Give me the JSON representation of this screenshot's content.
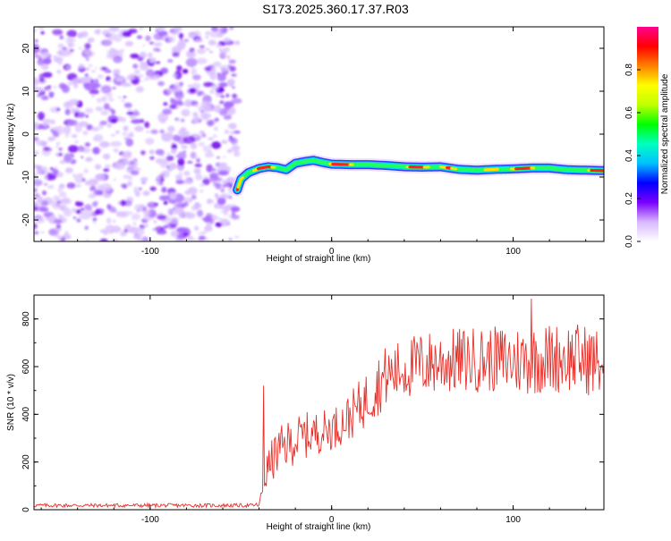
{
  "figure_title": "S173.2025.360.17.37.R03",
  "chart_data": [
    {
      "type": "heatmap",
      "panel": "spectrogram",
      "xlabel": "Height of straight line (km)",
      "ylabel": "Frequency (Hz)",
      "xlim": [
        -164,
        150
      ],
      "ylim": [
        -25,
        25
      ],
      "xticks": [
        -100,
        0,
        100
      ],
      "xtick_labels": [
        "-100",
        "0",
        "100"
      ],
      "yticks": [
        -20,
        -10,
        0,
        10,
        20
      ],
      "ytick_labels": [
        "-20",
        "-10",
        "0",
        "10",
        "20"
      ],
      "noise_region_x": [
        -164,
        -52
      ],
      "ridge": {
        "x": [
          -52,
          -50,
          -46,
          -40,
          -35,
          -30,
          -25,
          -20,
          -15,
          -10,
          -5,
          0,
          10,
          20,
          30,
          40,
          50,
          60,
          70,
          80,
          90,
          100,
          110,
          120,
          130,
          140,
          150
        ],
        "frequency": [
          -13,
          -10.5,
          -9,
          -8,
          -7.6,
          -7.8,
          -8.3,
          -6.8,
          -6.4,
          -6.1,
          -6.6,
          -7.0,
          -7.1,
          -7.1,
          -7.3,
          -7.6,
          -7.7,
          -7.6,
          -8.2,
          -8.4,
          -8.2,
          -8.1,
          -7.9,
          -7.9,
          -8.3,
          -8.4,
          -8.5
        ]
      },
      "colorbar": {
        "label": "Normalized spectral amplitude",
        "range": [
          0,
          1
        ],
        "ticks": [
          0.0,
          0.2,
          0.4,
          0.6,
          0.8
        ],
        "tick_labels": [
          "0.0",
          "0.2",
          "0.4",
          "0.6",
          "0.8"
        ],
        "colors": [
          "#ffffff",
          "#d8b8ff",
          "#7a00ff",
          "#0000ff",
          "#00c0ff",
          "#00ffc0",
          "#00ff00",
          "#c0ff00",
          "#ffff00",
          "#ff8000",
          "#ff0000",
          "#ff0090"
        ]
      }
    },
    {
      "type": "line",
      "panel": "snr",
      "xlabel": "Height of straight line (km)",
      "ylabel": "SNR (10 * v/v)",
      "xlim": [
        -164,
        150
      ],
      "ylim": [
        0,
        900
      ],
      "xticks": [
        -100,
        0,
        100
      ],
      "xtick_labels": [
        "-100",
        "0",
        "100"
      ],
      "yticks": [
        0,
        200,
        400,
        600,
        800
      ],
      "ytick_labels": [
        "0",
        "200",
        "400",
        "600",
        "800"
      ],
      "color": "#e8302a",
      "series": [
        {
          "name": "SNR",
          "x": [
            -164,
            -130,
            -100,
            -70,
            -45,
            -40,
            -38,
            -37.5,
            -37,
            -35,
            -30,
            -25,
            -20,
            -15,
            -10,
            -5,
            0,
            5,
            10,
            15,
            20,
            25,
            30,
            40,
            50,
            60,
            70,
            80,
            90,
            100,
            110,
            120,
            130,
            140,
            150
          ],
          "mean": [
            18,
            18,
            18,
            18,
            18,
            20,
            80,
            510,
            120,
            180,
            240,
            270,
            290,
            310,
            320,
            330,
            340,
            360,
            390,
            430,
            470,
            520,
            560,
            590,
            610,
            620,
            625,
            630,
            630,
            625,
            630,
            635,
            640,
            630,
            610
          ],
          "spread": [
            8,
            8,
            8,
            8,
            8,
            10,
            40,
            0,
            60,
            80,
            100,
            100,
            100,
            100,
            90,
            90,
            90,
            90,
            100,
            110,
            120,
            130,
            130,
            130,
            140,
            140,
            140,
            140,
            140,
            150,
            150,
            150,
            150,
            150,
            150
          ],
          "notable_peaks": [
            {
              "x": -37.5,
              "y": 520
            },
            {
              "x": 110,
              "y": 885
            }
          ]
        }
      ]
    }
  ]
}
